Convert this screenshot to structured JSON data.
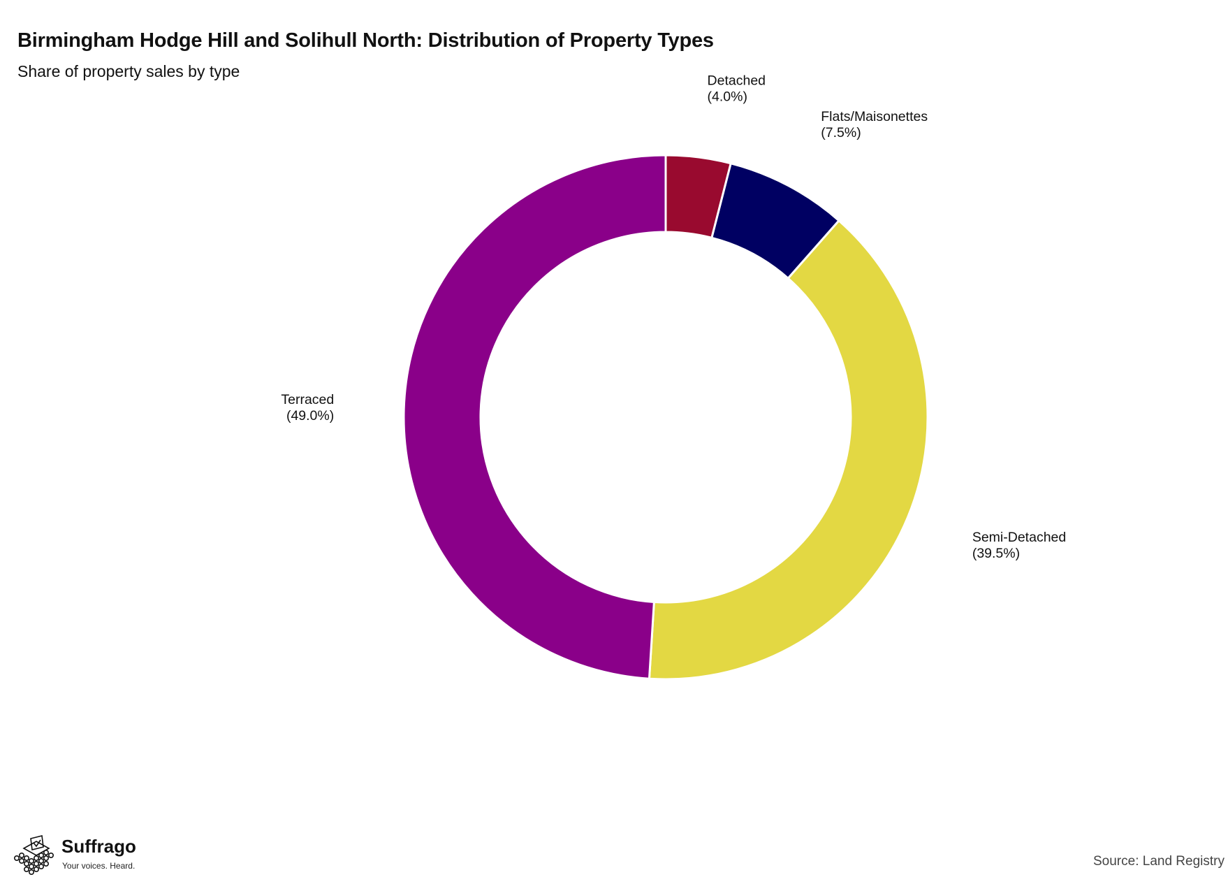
{
  "title": "Birmingham Hodge Hill and Solihull North: Distribution of Property Types",
  "subtitle": "Share of property sales by type",
  "source": "Source: Land Registry",
  "brand": {
    "name": "Suffrago",
    "tagline": "Your voices. Heard."
  },
  "chart_data": {
    "type": "pie",
    "variant": "donut",
    "title": "Birmingham Hodge Hill and Solihull North: Distribution of Property Types",
    "subtitle": "Share of property sales by type",
    "unit": "%",
    "legend": "none",
    "slices": [
      {
        "label": "Detached",
        "value": 4.0,
        "display": "(4.0%)",
        "color": "#990a2f"
      },
      {
        "label": "Flats/Maisonettes",
        "value": 7.5,
        "display": "(7.5%)",
        "color": "#000062"
      },
      {
        "label": "Semi-Detached",
        "value": 39.5,
        "display": "(39.5%)",
        "color": "#e3d843"
      },
      {
        "label": "Terraced",
        "value": 49.0,
        "display": "(49.0%)",
        "color": "#8a0089"
      }
    ]
  }
}
